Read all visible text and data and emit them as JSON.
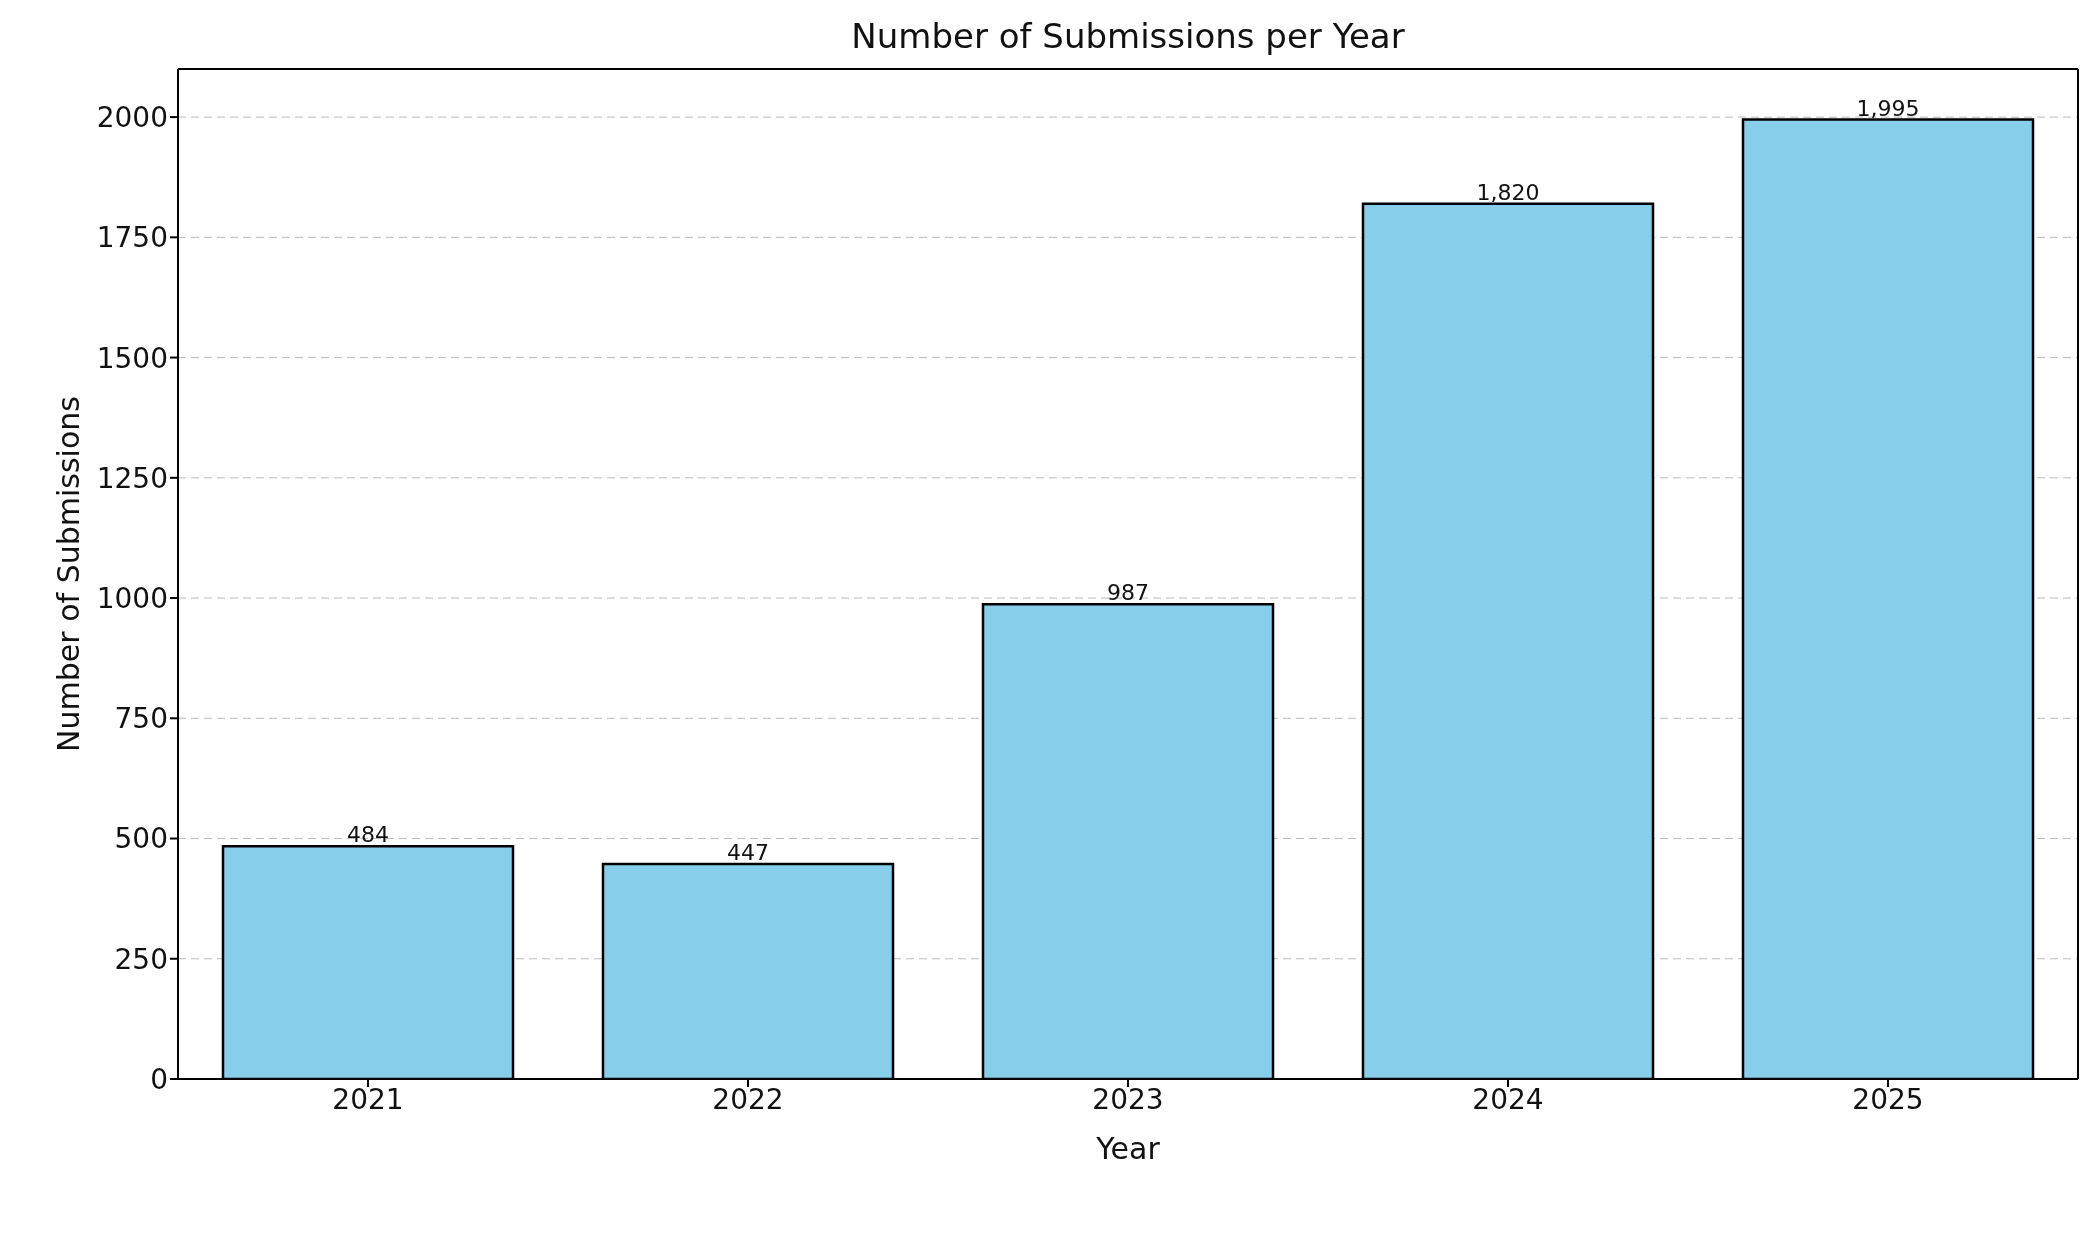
{
  "chart_data": {
    "type": "bar",
    "title": "Number of Submissions per Year",
    "xlabel": "Year",
    "ylabel": "Number of Submissions",
    "categories": [
      "2021",
      "2022",
      "2023",
      "2024",
      "2025"
    ],
    "values": [
      484,
      447,
      987,
      1820,
      1995
    ],
    "value_labels": [
      "484",
      "447",
      "987",
      "1,820",
      "1,995"
    ],
    "color": "#87ceeb",
    "ylim": [
      0,
      2100
    ],
    "yticks": [
      0,
      250,
      500,
      750,
      1000,
      1250,
      1500,
      1750,
      2000
    ],
    "grid": "y"
  }
}
